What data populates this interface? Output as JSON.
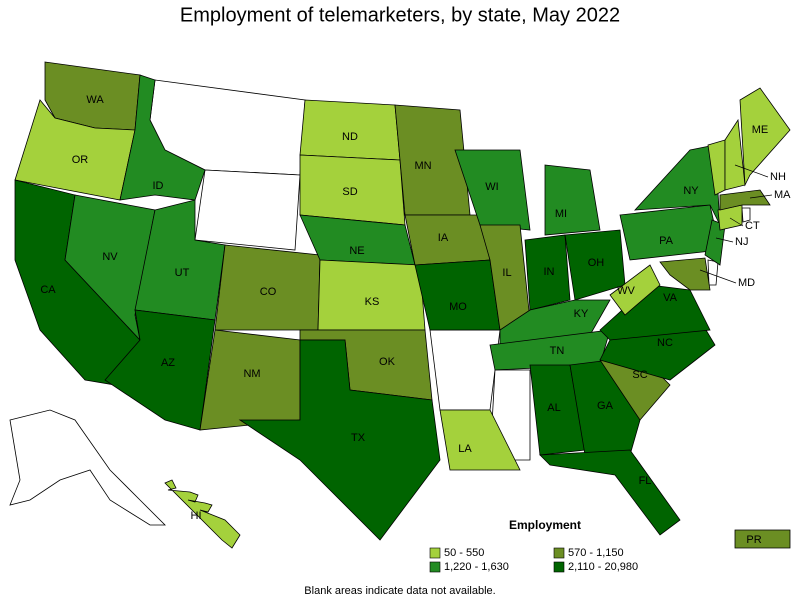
{
  "title": "Employment of telemarketers, by state, May 2022",
  "legend": {
    "title": "Employment",
    "items": [
      {
        "label": "50 - 550",
        "color": "#a4d13c"
      },
      {
        "label": "570 - 1,150",
        "color": "#6b8e23"
      },
      {
        "label": "1,220 - 1,630",
        "color": "#228b22"
      },
      {
        "label": "2,110 - 20,980",
        "color": "#006400"
      }
    ]
  },
  "note": "Blank areas indicate data not available.",
  "states": [
    {
      "abbr": "WA",
      "range": "570 - 1,150"
    },
    {
      "abbr": "OR",
      "range": "50 - 550"
    },
    {
      "abbr": "CA",
      "range": "2,110 - 20,980"
    },
    {
      "abbr": "NV",
      "range": "1,220 - 1,630"
    },
    {
      "abbr": "ID",
      "range": "1,220 - 1,630"
    },
    {
      "abbr": "UT",
      "range": "1,220 - 1,630"
    },
    {
      "abbr": "AZ",
      "range": "2,110 - 20,980"
    },
    {
      "abbr": "CO",
      "range": "570 - 1,150"
    },
    {
      "abbr": "NM",
      "range": "570 - 1,150"
    },
    {
      "abbr": "ND",
      "range": "50 - 550"
    },
    {
      "abbr": "SD",
      "range": "50 - 550"
    },
    {
      "abbr": "NE",
      "range": "1,220 - 1,630"
    },
    {
      "abbr": "KS",
      "range": "50 - 550"
    },
    {
      "abbr": "OK",
      "range": "570 - 1,150"
    },
    {
      "abbr": "TX",
      "range": "2,110 - 20,980"
    },
    {
      "abbr": "MN",
      "range": "570 - 1,150"
    },
    {
      "abbr": "IA",
      "range": "570 - 1,150"
    },
    {
      "abbr": "MO",
      "range": "2,110 - 20,980"
    },
    {
      "abbr": "LA",
      "range": "50 - 550"
    },
    {
      "abbr": "WI",
      "range": "1,220 - 1,630"
    },
    {
      "abbr": "IL",
      "range": "570 - 1,150"
    },
    {
      "abbr": "MI",
      "range": "1,220 - 1,630"
    },
    {
      "abbr": "IN",
      "range": "2,110 - 20,980"
    },
    {
      "abbr": "OH",
      "range": "2,110 - 20,980"
    },
    {
      "abbr": "KY",
      "range": "1,220 - 1,630"
    },
    {
      "abbr": "TN",
      "range": "1,220 - 1,630"
    },
    {
      "abbr": "AL",
      "range": "2,110 - 20,980"
    },
    {
      "abbr": "GA",
      "range": "2,110 - 20,980"
    },
    {
      "abbr": "FL",
      "range": "2,110 - 20,980"
    },
    {
      "abbr": "SC",
      "range": "570 - 1,150"
    },
    {
      "abbr": "NC",
      "range": "2,110 - 20,980"
    },
    {
      "abbr": "VA",
      "range": "2,110 - 20,980"
    },
    {
      "abbr": "WV",
      "range": "50 - 550"
    },
    {
      "abbr": "PA",
      "range": "1,220 - 1,630"
    },
    {
      "abbr": "NY",
      "range": "1,220 - 1,630"
    },
    {
      "abbr": "NJ",
      "range": "1,220 - 1,630"
    },
    {
      "abbr": "MD",
      "range": "570 - 1,150"
    },
    {
      "abbr": "CT",
      "range": "50 - 550"
    },
    {
      "abbr": "MA",
      "range": "570 - 1,150"
    },
    {
      "range": "50 - 550"
    },
    {
      "abbr": "NH",
      "range": "50 - 550"
    },
    {
      "abbr": "ME",
      "range": "50 - 550"
    },
    {
      "abbr": "HI",
      "range": "50 - 550"
    },
    {
      "abbr": "PR",
      "range": "570 - 1,150"
    }
  ]
}
